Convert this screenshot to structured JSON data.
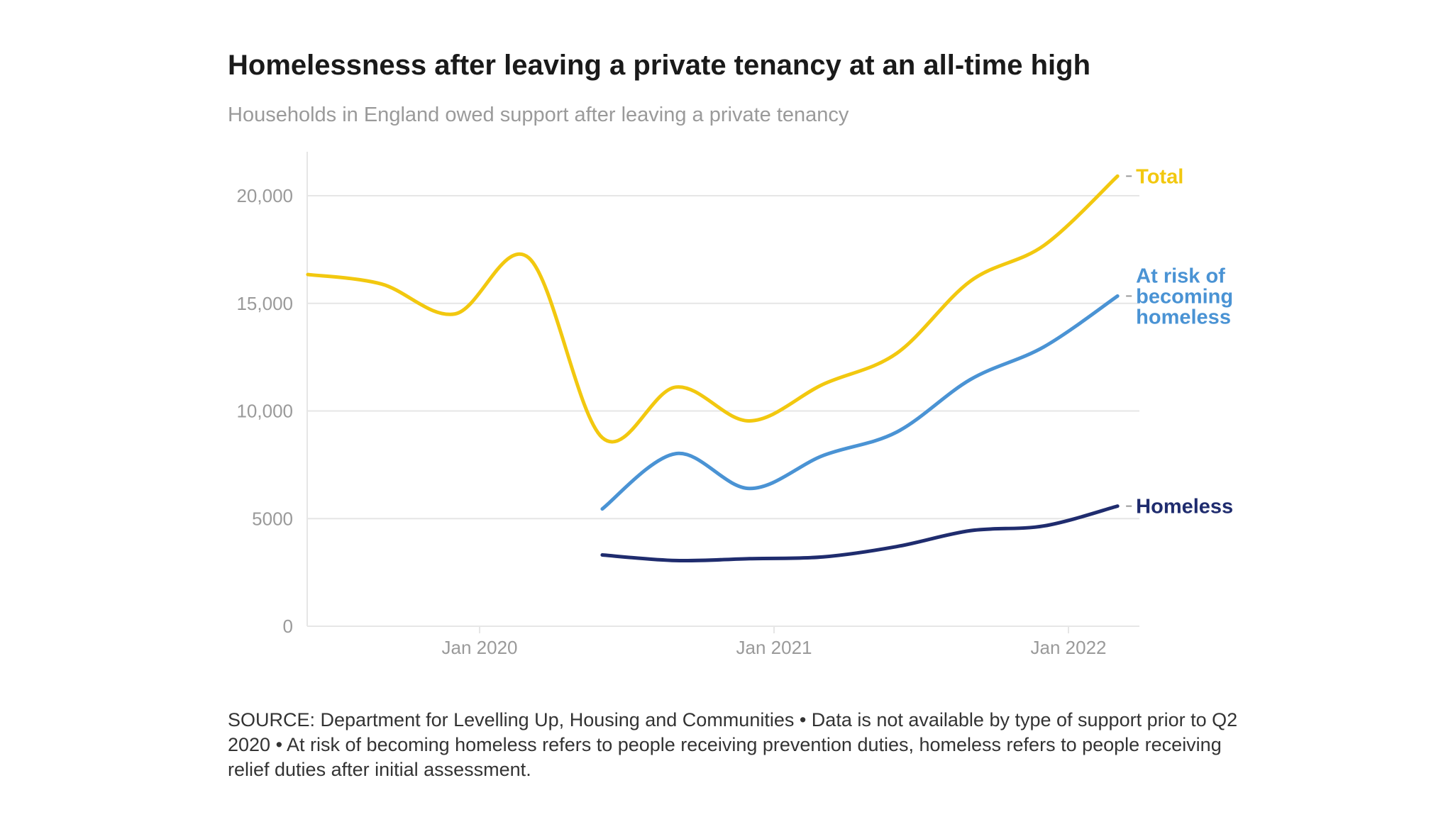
{
  "title": "Homelessness after leaving a private tenancy at an all-time high",
  "subtitle": "Households in England owed support after leaving a private tenancy",
  "source": "SOURCE: Department for Levelling Up, Housing and Communities • Data is not available by type of support prior to Q2 2020 • At risk of becoming homeless refers to people receiving prevention duties, homeless refers to people receiving relief duties after initial assessment.",
  "chart_data": {
    "type": "line",
    "title": "Homelessness after leaving a private tenancy at an all-time high",
    "subtitle": "Households in England owed support after leaving a private tenancy",
    "x": [
      "2019-06",
      "2019-09",
      "2019-12",
      "2020-03",
      "2020-06",
      "2020-09",
      "2020-12",
      "2021-03",
      "2021-06",
      "2021-09",
      "2021-12",
      "2022-03"
    ],
    "xticks": [
      {
        "date": "2020-01",
        "label": "Jan 2020"
      },
      {
        "date": "2021-01",
        "label": "Jan 2021"
      },
      {
        "date": "2022-01",
        "label": "Jan 2022"
      }
    ],
    "yticks": [
      {
        "value": 0,
        "label": "0"
      },
      {
        "value": 5000,
        "label": "5000"
      },
      {
        "value": 10000,
        "label": "10,000"
      },
      {
        "value": 15000,
        "label": "15,000"
      },
      {
        "value": 20000,
        "label": "20,000"
      }
    ],
    "ylim": [
      0,
      22000
    ],
    "xlim": [
      "2019-06",
      "2022-06"
    ],
    "grid": "horizontal",
    "legend": "direct labels at line ends (right)",
    "series": [
      {
        "name": "Total",
        "label_lines": [
          "Total"
        ],
        "color": "#f2c80f",
        "values": [
          16340,
          15900,
          14510,
          17120,
          8760,
          11110,
          9540,
          11240,
          12680,
          16030,
          17690,
          20910
        ]
      },
      {
        "name": "At risk of becoming homeless",
        "label_lines": [
          "At risk of",
          "becoming",
          "homeless"
        ],
        "color": "#4a93d4",
        "values": [
          null,
          null,
          null,
          null,
          5450,
          8020,
          6400,
          7930,
          9020,
          11460,
          12980,
          15340
        ]
      },
      {
        "name": "Homeless",
        "label_lines": [
          "Homeless"
        ],
        "color": "#1f2c6e",
        "values": [
          null,
          null,
          null,
          null,
          3310,
          3050,
          3140,
          3220,
          3700,
          4440,
          4660,
          5580
        ]
      }
    ]
  }
}
